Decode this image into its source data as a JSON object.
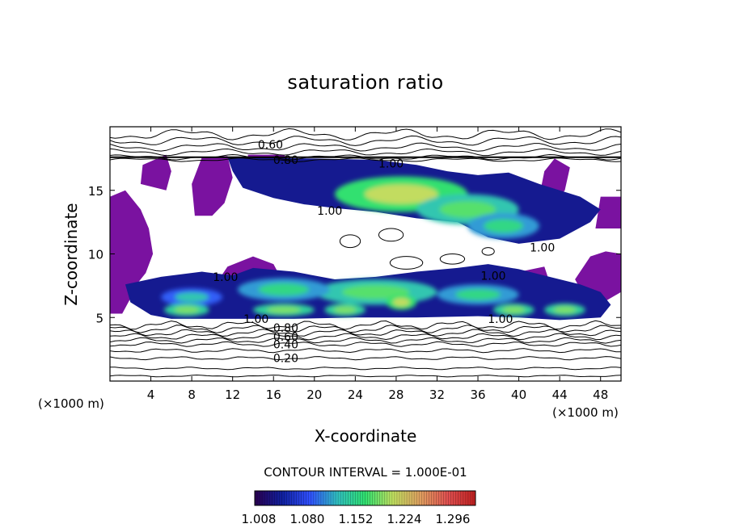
{
  "chart_data": {
    "type": "contour",
    "title": "saturation ratio",
    "xlabel": "X-coordinate",
    "ylabel": "Z-coordinate",
    "x_unit_label": "(×1000 m)",
    "xlim": [
      0,
      50
    ],
    "ylim": [
      0,
      20
    ],
    "x_ticks": [
      "4",
      "8",
      "12",
      "16",
      "20",
      "24",
      "28",
      "32",
      "36",
      "40",
      "44",
      "48"
    ],
    "y_ticks": [
      "5",
      "10",
      "15"
    ],
    "contour_interval_text": "CONTOUR INTERVAL = 1.000E-01",
    "contour_labels": [
      {
        "text": "0.60",
        "x": 15.7,
        "y": 18.6
      },
      {
        "text": "0.80",
        "x": 17.2,
        "y": 17.4
      },
      {
        "text": "1.00",
        "x": 27.5,
        "y": 17.1
      },
      {
        "text": "1.00",
        "x": 21.5,
        "y": 13.4
      },
      {
        "text": "1.00",
        "x": 42.3,
        "y": 10.5
      },
      {
        "text": "1.00",
        "x": 11.3,
        "y": 8.2
      },
      {
        "text": "1.00",
        "x": 37.5,
        "y": 8.3
      },
      {
        "text": "1.00",
        "x": 14.3,
        "y": 4.9
      },
      {
        "text": "1.00",
        "x": 38.2,
        "y": 4.9
      },
      {
        "text": "0.80",
        "x": 17.2,
        "y": 4.2
      },
      {
        "text": "0.60",
        "x": 17.2,
        "y": 3.5
      },
      {
        "text": "0.40",
        "x": 17.2,
        "y": 2.9
      },
      {
        "text": "0.20",
        "x": 17.2,
        "y": 1.8
      }
    ],
    "supersaturated_regions": [
      {
        "level": 1.15,
        "cx": 28.5,
        "cy": 14.7,
        "rx": 6.5,
        "ry": 1.4
      },
      {
        "level": 1.12,
        "cx": 35.0,
        "cy": 13.5,
        "rx": 5.0,
        "ry": 1.2
      },
      {
        "level": 1.1,
        "cx": 38.5,
        "cy": 12.2,
        "rx": 3.5,
        "ry": 1.0
      },
      {
        "level": 1.12,
        "cx": 26.0,
        "cy": 7.0,
        "rx": 6.0,
        "ry": 1.0
      },
      {
        "level": 1.1,
        "cx": 17.0,
        "cy": 7.2,
        "rx": 4.5,
        "ry": 0.9
      },
      {
        "level": 1.1,
        "cx": 36.0,
        "cy": 6.8,
        "rx": 4.0,
        "ry": 0.8
      },
      {
        "level": 1.08,
        "cx": 8.0,
        "cy": 6.6,
        "rx": 3.0,
        "ry": 0.7
      },
      {
        "level": 1.13,
        "cx": 7.5,
        "cy": 5.6,
        "rx": 2.2,
        "ry": 0.5
      },
      {
        "level": 1.13,
        "cx": 17.0,
        "cy": 5.6,
        "rx": 3.0,
        "ry": 0.5
      },
      {
        "level": 1.13,
        "cx": 23.0,
        "cy": 5.6,
        "rx": 2.0,
        "ry": 0.5
      },
      {
        "level": 1.13,
        "cx": 39.5,
        "cy": 5.6,
        "rx": 2.0,
        "ry": 0.5
      },
      {
        "level": 1.13,
        "cx": 44.5,
        "cy": 5.6,
        "rx": 2.0,
        "ry": 0.5
      },
      {
        "level": 1.15,
        "cx": 28.5,
        "cy": 6.2,
        "rx": 1.5,
        "ry": 0.6
      }
    ],
    "colorbar": {
      "tick_labels": [
        "1.008",
        "1.080",
        "1.152",
        "1.224",
        "1.296"
      ],
      "range": [
        1.0,
        1.3
      ],
      "colors": [
        "#2a0050",
        "#1020a0",
        "#3050ff",
        "#30c0c0",
        "#30e070",
        "#c0e060",
        "#e0a060",
        "#e05050",
        "#c02020"
      ]
    },
    "colors": {
      "subsaturated_fill": "#7a12a0",
      "contour_line": "#000000"
    }
  }
}
